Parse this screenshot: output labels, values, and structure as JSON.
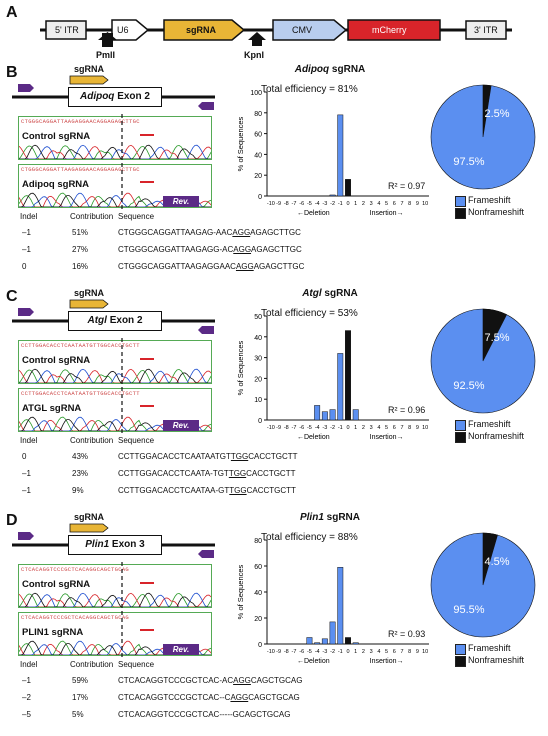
{
  "panelA": {
    "label": "A",
    "elements": [
      "5' ITR",
      "U6",
      "sgRNA",
      "CMV",
      "mCherry",
      "3' ITR"
    ],
    "sites": [
      "PmlI",
      "KpnI"
    ]
  },
  "panels": [
    {
      "label": "B",
      "gene_box": "Adipoq Exon 2",
      "gene_box_italic": "Adipoq",
      "gene_box_rest": " Exon 2",
      "sgRNA_tag": "sgRNA",
      "rev_tag": "Rev.",
      "control_label": "Control sgRNA",
      "edit_label": "Adipoq sgRNA",
      "chart_title_italic": "Adipoq",
      "chart_title_rest": " sgRNA",
      "efficiency": "Total efficiency = 81%",
      "r2": "R² = 0.97",
      "pie": {
        "frameshift": 97.5,
        "nonframeshift": 2.5,
        "frameshift_label": "97.5%",
        "nonframeshift_label": "2.5%"
      },
      "table_header": [
        "Indel",
        "Contribution",
        "Sequence"
      ],
      "rows": [
        {
          "indel": "–1",
          "contribution": "51%",
          "seq_pre": "CTGGGCAGGATTAAGAG-AAC",
          "seq_u": "AGG",
          "seq_post": "AGAGCTTGC"
        },
        {
          "indel": "–1",
          "contribution": "27%",
          "seq_pre": "CTGGGCAGGATTAAGAGG-AC",
          "seq_u": "AGG",
          "seq_post": "AGAGCTTGC"
        },
        {
          "indel": "0",
          "contribution": "16%",
          "seq_pre": "CTGGGCAGGATTAAGAGGAAC",
          "seq_u": "AGG",
          "seq_post": "AGAGCTTGC"
        }
      ],
      "seq_strip": "CTGGGCAGGATTAAGAGGAACAGGAGAGCTTGC"
    },
    {
      "label": "C",
      "gene_box": "Atgl Exon 2",
      "gene_box_italic": "Atgl",
      "gene_box_rest": " Exon 2",
      "sgRNA_tag": "sgRNA",
      "rev_tag": "Rev.",
      "control_label": "Control sgRNA",
      "edit_label": "ATGL sgRNA",
      "chart_title_italic": "Atgl",
      "chart_title_rest": " sgRNA",
      "efficiency": "Total efficiency = 53%",
      "r2": "R² = 0.96",
      "pie": {
        "frameshift": 92.5,
        "nonframeshift": 7.5,
        "frameshift_label": "92.5%",
        "nonframeshift_label": "7.5%"
      },
      "table_header": [
        "Indel",
        "Contribution",
        "Sequence"
      ],
      "rows": [
        {
          "indel": "0",
          "contribution": "43%",
          "seq_pre": "CCTTGGACACCTCAATAATGT",
          "seq_u": "TGG",
          "seq_post": "CACCTGCTT"
        },
        {
          "indel": "–1",
          "contribution": "23%",
          "seq_pre": "CCTTGGACACCTCAATA-TGT",
          "seq_u": "TGG",
          "seq_post": "CACCTGCTT"
        },
        {
          "indel": "–1",
          "contribution": "9%",
          "seq_pre": "CCTTGGACACCTCAATAA-GT",
          "seq_u": "TGG",
          "seq_post": "CACCTGCTT"
        }
      ],
      "seq_strip": "CCTTGGACACCTCAATAATGTTGGCACCTGCTT"
    },
    {
      "label": "D",
      "gene_box": "Plin1 Exon 3",
      "gene_box_italic": "Plin1",
      "gene_box_rest": " Exon 3",
      "sgRNA_tag": "sgRNA",
      "rev_tag": "Rev.",
      "control_label": "Control sgRNA",
      "edit_label": "PLIN1 sgRNA",
      "chart_title_italic": "Plin1",
      "chart_title_rest": " sgRNA",
      "efficiency": "Total efficiency = 88%",
      "r2": "R² = 0.93",
      "pie": {
        "frameshift": 95.5,
        "nonframeshift": 4.5,
        "frameshift_label": "95.5%",
        "nonframeshift_label": "4.5%"
      },
      "table_header": [
        "Indel",
        "Contribution",
        "Sequence"
      ],
      "rows": [
        {
          "indel": "–1",
          "contribution": "59%",
          "seq_pre": "CTCACAGGTCCCGCTCAC-AC",
          "seq_u": "AGG",
          "seq_post": "CAGCTGCAG"
        },
        {
          "indel": "–2",
          "contribution": "17%",
          "seq_pre": "CTCACAGGTCCCGCTCAC--C",
          "seq_u": "AGG",
          "seq_post": "CAGCTGCAG"
        },
        {
          "indel": "–5",
          "contribution": "5%",
          "seq_pre": "CTCACAGGTCCCGCTCAC-----",
          "seq_u": "",
          "seq_post": "GCAGCTGCAG"
        }
      ],
      "seq_strip": "CTCACAGGTCCCGCTCACAGGCAGCTGCAG"
    }
  ],
  "shared": {
    "ylabel": "% of Sequences",
    "deletion_label": "←Deletion",
    "insertion_label": "Insertion→",
    "legend_frameshift": "Frameshift",
    "legend_nonframeshift": "Nonframeshift"
  },
  "colors": {
    "blue": "#5b8ff0",
    "black": "#111111",
    "sgRNA": "#e8b536",
    "cmv": "#b8cdee",
    "mcherry": "#d8242a",
    "purple": "#5b2a86"
  },
  "chart_data": [
    {
      "type": "bar",
      "title": "Adipoq sgRNA",
      "ylabel": "% of Sequences",
      "ylim": [
        0,
        100
      ],
      "yticks": [
        0,
        20,
        40,
        60,
        80,
        100
      ],
      "categories": [
        -10,
        -9,
        -8,
        -7,
        -6,
        -5,
        -4,
        -3,
        -2,
        -1,
        0,
        1,
        2,
        3,
        4,
        5,
        6,
        7,
        8,
        9,
        10
      ],
      "values": [
        0,
        0,
        0,
        0,
        0,
        0,
        0,
        0,
        1,
        78,
        16,
        0,
        0,
        0,
        0,
        0,
        0,
        0,
        0,
        0,
        0
      ]
    },
    {
      "type": "bar",
      "title": "Atgl sgRNA",
      "ylabel": "% of Sequences",
      "ylim": [
        0,
        50
      ],
      "yticks": [
        0,
        10,
        20,
        30,
        40,
        50
      ],
      "categories": [
        -10,
        -9,
        -8,
        -7,
        -6,
        -5,
        -4,
        -3,
        -2,
        -1,
        0,
        1,
        2,
        3,
        4,
        5,
        6,
        7,
        8,
        9,
        10
      ],
      "values": [
        0,
        0,
        0,
        0,
        0,
        0,
        7,
        4,
        5,
        32,
        43,
        5,
        0,
        0,
        0,
        0,
        0,
        0,
        0,
        0,
        0
      ]
    },
    {
      "type": "bar",
      "title": "Plin1 sgRNA",
      "ylabel": "% of Sequences",
      "ylim": [
        0,
        80
      ],
      "yticks": [
        0,
        20,
        40,
        60,
        80
      ],
      "categories": [
        -10,
        -9,
        -8,
        -7,
        -6,
        -5,
        -4,
        -3,
        -2,
        -1,
        0,
        1,
        2,
        3,
        4,
        5,
        6,
        7,
        8,
        9,
        10
      ],
      "values": [
        0,
        0,
        0,
        0,
        0,
        5,
        1,
        4,
        17,
        59,
        5,
        1,
        0,
        0,
        0,
        0,
        0,
        0,
        0,
        0,
        0
      ]
    }
  ]
}
